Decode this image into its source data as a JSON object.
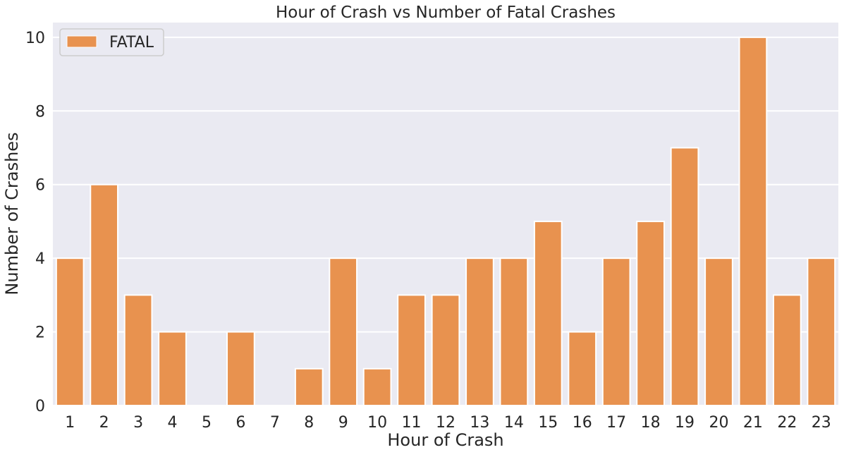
{
  "chart_data": {
    "type": "bar",
    "title": "Hour of Crash vs Number of Fatal Crashes",
    "xlabel": "Hour of Crash",
    "ylabel": "Number of Crashes",
    "categories": [
      "1",
      "2",
      "3",
      "4",
      "5",
      "6",
      "7",
      "8",
      "9",
      "10",
      "11",
      "12",
      "13",
      "14",
      "15",
      "16",
      "17",
      "18",
      "19",
      "20",
      "21",
      "22",
      "23"
    ],
    "series": [
      {
        "name": "FATAL",
        "color": "#e8924f",
        "values": [
          4,
          6,
          3,
          2,
          0,
          2,
          0,
          1,
          4,
          1,
          3,
          3,
          4,
          4,
          5,
          2,
          4,
          5,
          7,
          4,
          10,
          3,
          4
        ]
      }
    ],
    "ylim": [
      0,
      10.4
    ],
    "yticks": [
      0,
      2,
      4,
      6,
      8,
      10
    ],
    "grid": true,
    "legend_position": "top-left",
    "background_color": "#eaeaf2",
    "grid_color": "#ffffff"
  }
}
